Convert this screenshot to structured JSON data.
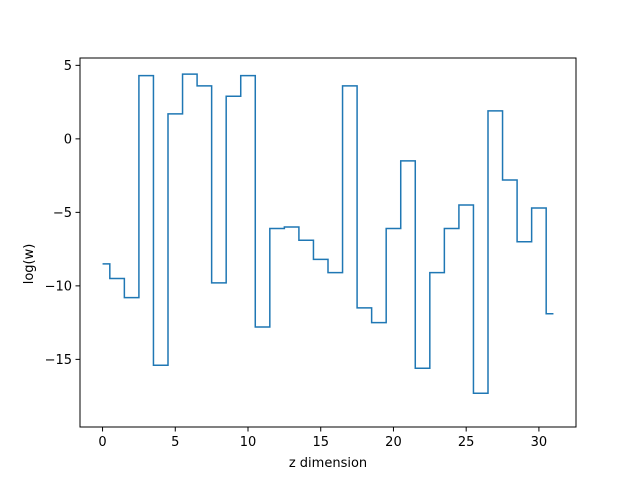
{
  "chart_data": {
    "type": "line",
    "drawstyle": "steps-mid",
    "title": "",
    "xlabel": "z dimension",
    "ylabel": "log(w)",
    "xlim": [
      -1.55,
      32.55
    ],
    "ylim": [
      -19.6,
      5.5
    ],
    "xticks": [
      0,
      5,
      10,
      15,
      20,
      25,
      30
    ],
    "yticks": [
      -15,
      -10,
      -5,
      0,
      5
    ],
    "grid": false,
    "series": [
      {
        "color": "#1f77b4",
        "x": [
          0,
          1,
          2,
          3,
          4,
          5,
          6,
          7,
          8,
          9,
          10,
          11,
          12,
          13,
          14,
          15,
          16,
          17,
          18,
          19,
          20,
          21,
          22,
          23,
          24,
          25,
          26,
          27,
          28,
          29,
          30,
          31
        ],
        "y": [
          -8.5,
          -9.5,
          -10.8,
          4.3,
          -15.4,
          1.7,
          4.4,
          3.6,
          -9.8,
          2.9,
          4.3,
          -12.8,
          -6.1,
          -6.0,
          -6.9,
          -8.2,
          -9.1,
          3.6,
          -11.5,
          -12.5,
          -6.1,
          -1.5,
          -15.6,
          -9.1,
          -6.1,
          -4.5,
          -17.3,
          1.9,
          -2.8,
          -7.0,
          -4.7,
          -11.9
        ]
      }
    ]
  }
}
